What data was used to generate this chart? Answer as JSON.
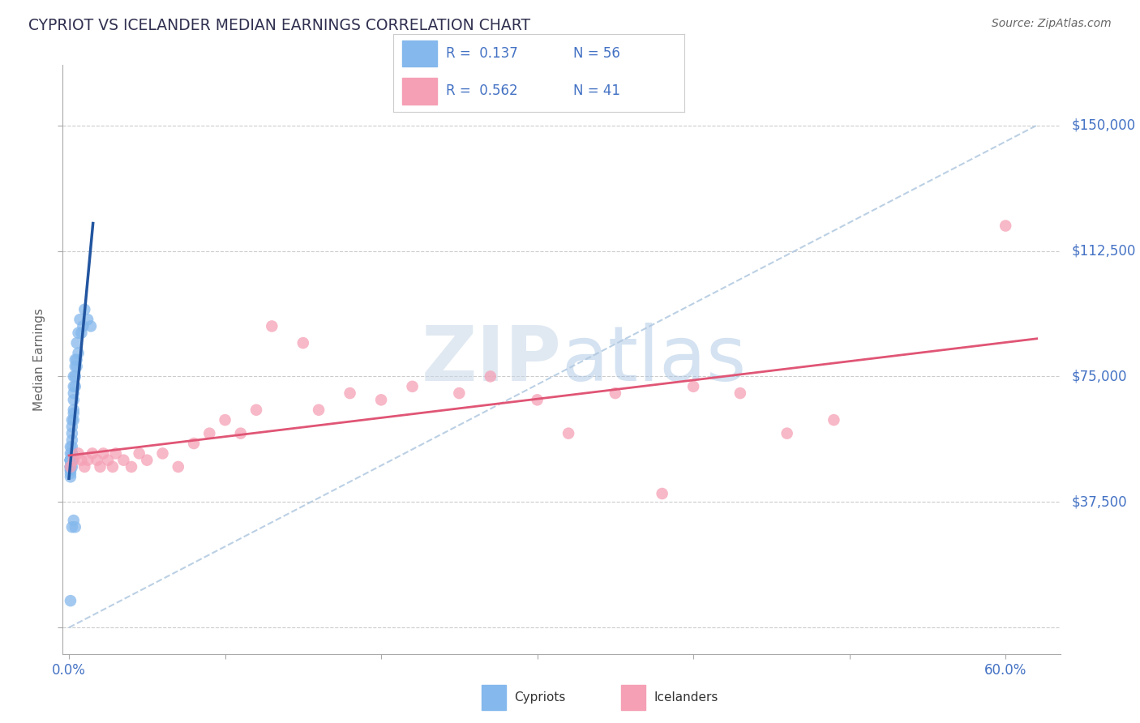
{
  "title": "CYPRIOT VS ICELANDER MEDIAN EARNINGS CORRELATION CHART",
  "source": "Source: ZipAtlas.com",
  "ylabel": "Median Earnings",
  "xlim": [
    -0.004,
    0.635
  ],
  "ylim": [
    -8000,
    168000
  ],
  "ytick_vals": [
    0,
    37500,
    75000,
    112500,
    150000
  ],
  "ytick_labels": [
    "",
    "$37,500",
    "$75,000",
    "$112,500",
    "$150,000"
  ],
  "xtick_vals": [
    0.0,
    0.1,
    0.2,
    0.3,
    0.4,
    0.5,
    0.6
  ],
  "xtick_labels": [
    "0.0%",
    "",
    "",
    "",
    "",
    "",
    "60.0%"
  ],
  "cypriot_color": "#85b8ec",
  "icelander_color": "#f5a0b5",
  "reg_cypriot_color": "#2255a0",
  "reg_icelander_color": "#e05575",
  "diagonal_color": "#b0c8e0",
  "background_color": "#ffffff",
  "watermark_color": "#ddeeff",
  "cypriot_x": [
    0.001,
    0.001,
    0.001,
    0.001,
    0.001,
    0.001,
    0.001,
    0.001,
    0.001,
    0.001,
    0.001,
    0.001,
    0.001,
    0.001,
    0.001,
    0.001,
    0.001,
    0.001,
    0.002,
    0.002,
    0.002,
    0.002,
    0.002,
    0.002,
    0.002,
    0.002,
    0.002,
    0.002,
    0.002,
    0.002,
    0.003,
    0.003,
    0.003,
    0.003,
    0.003,
    0.003,
    0.003,
    0.004,
    0.004,
    0.004,
    0.004,
    0.005,
    0.005,
    0.005,
    0.006,
    0.006,
    0.007,
    0.008,
    0.009,
    0.01,
    0.012,
    0.014,
    0.002,
    0.003,
    0.004,
    0.001
  ],
  "cypriot_y": [
    50000,
    52000,
    54000,
    50000,
    50000,
    48000,
    47000,
    50000,
    48000,
    50000,
    50000,
    48000,
    46000,
    50000,
    48000,
    47000,
    45000,
    48000,
    52000,
    50000,
    50000,
    48000,
    50000,
    52000,
    50000,
    54000,
    56000,
    58000,
    60000,
    62000,
    62000,
    64000,
    65000,
    68000,
    70000,
    72000,
    75000,
    72000,
    75000,
    78000,
    80000,
    78000,
    80000,
    85000,
    82000,
    88000,
    92000,
    88000,
    90000,
    95000,
    92000,
    90000,
    30000,
    32000,
    30000,
    8000
  ],
  "icelander_x": [
    0.001,
    0.003,
    0.006,
    0.008,
    0.01,
    0.012,
    0.015,
    0.018,
    0.02,
    0.022,
    0.025,
    0.028,
    0.03,
    0.035,
    0.04,
    0.045,
    0.05,
    0.06,
    0.07,
    0.08,
    0.09,
    0.1,
    0.11,
    0.12,
    0.13,
    0.15,
    0.16,
    0.18,
    0.2,
    0.22,
    0.25,
    0.27,
    0.3,
    0.32,
    0.35,
    0.38,
    0.4,
    0.43,
    0.46,
    0.49,
    0.6
  ],
  "icelander_y": [
    48000,
    50000,
    52000,
    50000,
    48000,
    50000,
    52000,
    50000,
    48000,
    52000,
    50000,
    48000,
    52000,
    50000,
    48000,
    52000,
    50000,
    52000,
    48000,
    55000,
    58000,
    62000,
    58000,
    65000,
    90000,
    85000,
    65000,
    70000,
    68000,
    72000,
    70000,
    75000,
    68000,
    58000,
    70000,
    40000,
    72000,
    70000,
    58000,
    62000,
    120000
  ]
}
